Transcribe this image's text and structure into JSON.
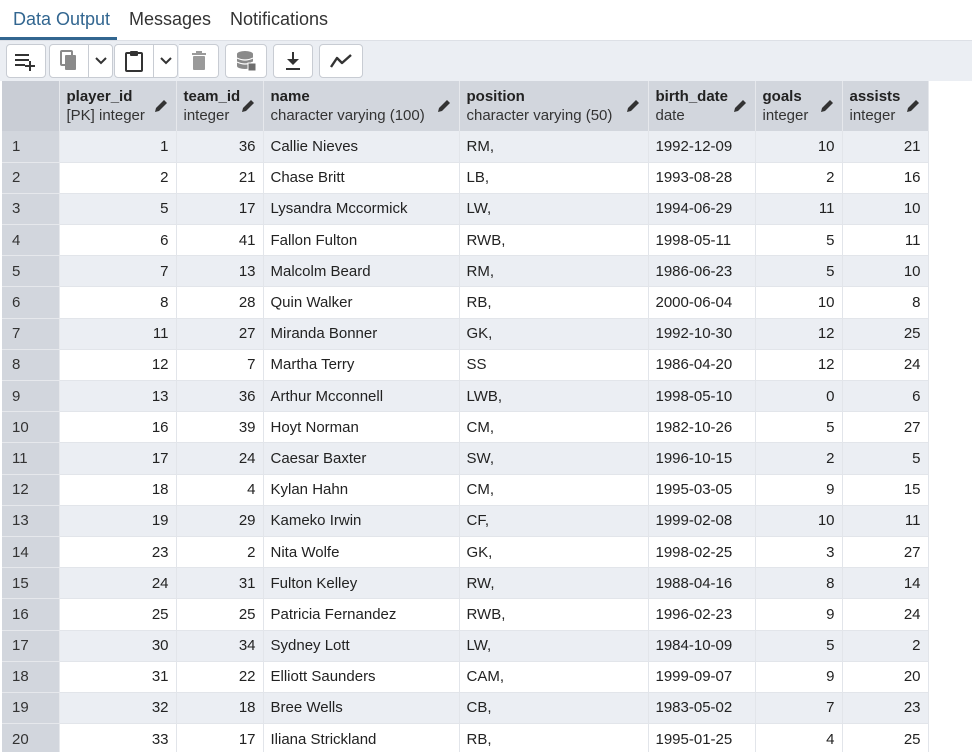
{
  "tabs": [
    {
      "label": "Data Output",
      "active": true
    },
    {
      "label": "Messages",
      "active": false
    },
    {
      "label": "Notifications",
      "active": false
    }
  ],
  "toolbar": {
    "buttons": [
      {
        "name": "add-row-icon"
      },
      {
        "name": "copy-icon"
      },
      {
        "name": "copy-options-chevron-icon"
      },
      {
        "name": "paste-icon"
      },
      {
        "name": "paste-options-chevron-icon"
      },
      {
        "name": "delete-icon"
      },
      {
        "name": "save-data-icon"
      },
      {
        "name": "download-icon"
      },
      {
        "name": "graph-visualiser-icon"
      }
    ]
  },
  "columns": [
    {
      "name": "player_id",
      "type": "[PK] integer"
    },
    {
      "name": "team_id",
      "type": "integer"
    },
    {
      "name": "name",
      "type": "character varying (100)"
    },
    {
      "name": "position",
      "type": "character varying (50)"
    },
    {
      "name": "birth_date",
      "type": "date"
    },
    {
      "name": "goals",
      "type": "integer"
    },
    {
      "name": "assists",
      "type": "integer"
    }
  ],
  "rows": [
    {
      "n": "1",
      "player_id": "1",
      "team_id": "36",
      "name": "Callie Nieves",
      "position": "RM,",
      "birth_date": "1992-12-09",
      "goals": "10",
      "assists": "21"
    },
    {
      "n": "2",
      "player_id": "2",
      "team_id": "21",
      "name": "Chase Britt",
      "position": "LB,",
      "birth_date": "1993-08-28",
      "goals": "2",
      "assists": "16"
    },
    {
      "n": "3",
      "player_id": "5",
      "team_id": "17",
      "name": "Lysandra Mccormick",
      "position": "LW,",
      "birth_date": "1994-06-29",
      "goals": "11",
      "assists": "10"
    },
    {
      "n": "4",
      "player_id": "6",
      "team_id": "41",
      "name": "Fallon Fulton",
      "position": "RWB,",
      "birth_date": "1998-05-11",
      "goals": "5",
      "assists": "11"
    },
    {
      "n": "5",
      "player_id": "7",
      "team_id": "13",
      "name": "Malcolm Beard",
      "position": "RM,",
      "birth_date": "1986-06-23",
      "goals": "5",
      "assists": "10"
    },
    {
      "n": "6",
      "player_id": "8",
      "team_id": "28",
      "name": "Quin Walker",
      "position": "RB,",
      "birth_date": "2000-06-04",
      "goals": "10",
      "assists": "8"
    },
    {
      "n": "7",
      "player_id": "11",
      "team_id": "27",
      "name": "Miranda Bonner",
      "position": "GK,",
      "birth_date": "1992-10-30",
      "goals": "12",
      "assists": "25"
    },
    {
      "n": "8",
      "player_id": "12",
      "team_id": "7",
      "name": "Martha Terry",
      "position": "SS",
      "birth_date": "1986-04-20",
      "goals": "12",
      "assists": "24"
    },
    {
      "n": "9",
      "player_id": "13",
      "team_id": "36",
      "name": "Arthur Mcconnell",
      "position": "LWB,",
      "birth_date": "1998-05-10",
      "goals": "0",
      "assists": "6"
    },
    {
      "n": "10",
      "player_id": "16",
      "team_id": "39",
      "name": "Hoyt Norman",
      "position": "CM,",
      "birth_date": "1982-10-26",
      "goals": "5",
      "assists": "27"
    },
    {
      "n": "11",
      "player_id": "17",
      "team_id": "24",
      "name": "Caesar Baxter",
      "position": "SW,",
      "birth_date": "1996-10-15",
      "goals": "2",
      "assists": "5"
    },
    {
      "n": "12",
      "player_id": "18",
      "team_id": "4",
      "name": "Kylan Hahn",
      "position": "CM,",
      "birth_date": "1995-03-05",
      "goals": "9",
      "assists": "15"
    },
    {
      "n": "13",
      "player_id": "19",
      "team_id": "29",
      "name": "Kameko Irwin",
      "position": "CF,",
      "birth_date": "1999-02-08",
      "goals": "10",
      "assists": "11"
    },
    {
      "n": "14",
      "player_id": "23",
      "team_id": "2",
      "name": "Nita Wolfe",
      "position": "GK,",
      "birth_date": "1998-02-25",
      "goals": "3",
      "assists": "27"
    },
    {
      "n": "15",
      "player_id": "24",
      "team_id": "31",
      "name": "Fulton Kelley",
      "position": "RW,",
      "birth_date": "1988-04-16",
      "goals": "8",
      "assists": "14"
    },
    {
      "n": "16",
      "player_id": "25",
      "team_id": "25",
      "name": "Patricia Fernandez",
      "position": "RWB,",
      "birth_date": "1996-02-23",
      "goals": "9",
      "assists": "24"
    },
    {
      "n": "17",
      "player_id": "30",
      "team_id": "34",
      "name": "Sydney Lott",
      "position": "LW,",
      "birth_date": "1984-10-09",
      "goals": "5",
      "assists": "2"
    },
    {
      "n": "18",
      "player_id": "31",
      "team_id": "22",
      "name": "Elliott Saunders",
      "position": "CAM,",
      "birth_date": "1999-09-07",
      "goals": "9",
      "assists": "20"
    },
    {
      "n": "19",
      "player_id": "32",
      "team_id": "18",
      "name": "Bree Wells",
      "position": "CB,",
      "birth_date": "1983-05-02",
      "goals": "7",
      "assists": "23"
    },
    {
      "n": "20",
      "player_id": "33",
      "team_id": "17",
      "name": "Iliana Strickland",
      "position": "RB,",
      "birth_date": "1995-01-25",
      "goals": "4",
      "assists": "25"
    }
  ]
}
